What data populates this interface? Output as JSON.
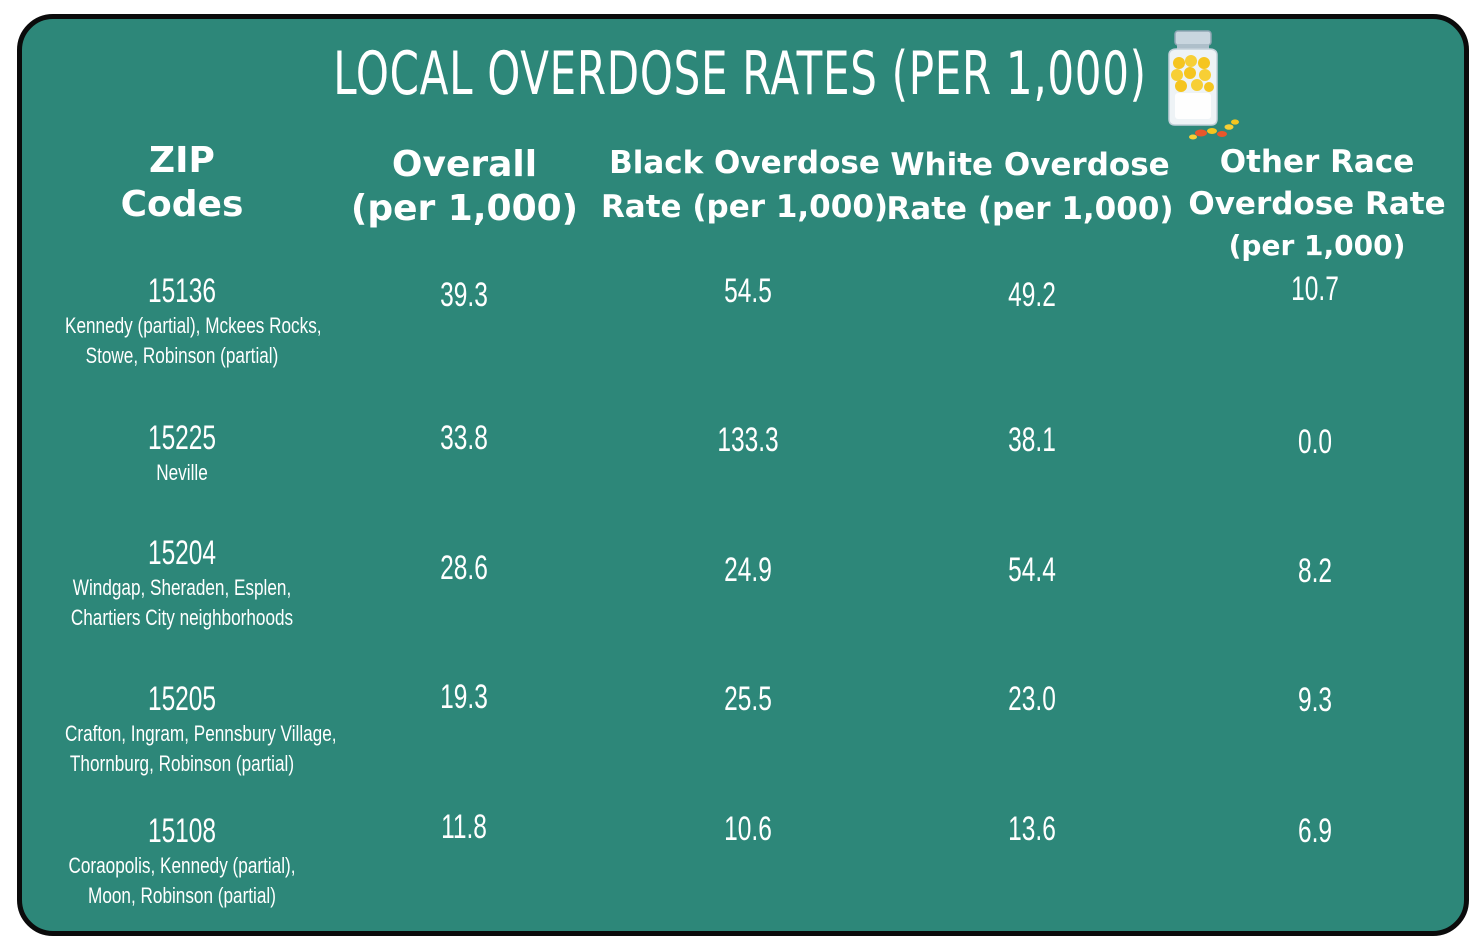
{
  "chart_data": {
    "type": "table",
    "title": "LOCAL OVERDOSE RATES (PER 1,000)",
    "columns": [
      {
        "key": "zip",
        "lines": [
          "ZIP",
          "Codes",
          ""
        ]
      },
      {
        "key": "overall",
        "lines": [
          "Overall",
          "(per 1,000)",
          ""
        ]
      },
      {
        "key": "black",
        "lines": [
          "Black Overdose",
          "Rate (per 1,000)",
          ""
        ]
      },
      {
        "key": "white",
        "lines": [
          "White Overdose",
          "Rate (per 1,000)",
          ""
        ]
      },
      {
        "key": "other",
        "lines": [
          "Other Race",
          "Overdose Rate",
          "(per 1,000)"
        ]
      }
    ],
    "rows": [
      {
        "zip": "15136",
        "areas": [
          "Kennedy (partial), Mckees Rocks,",
          "Stowe, Robinson (partial)"
        ],
        "overall": "39.3",
        "black": "54.5",
        "white": "49.2",
        "other": "10.7"
      },
      {
        "zip": "15225",
        "areas": [
          "Neville",
          ""
        ],
        "overall": "33.8",
        "black": "133.3",
        "white": "38.1",
        "other": "0.0"
      },
      {
        "zip": "15204",
        "areas": [
          "Windgap, Sheraden, Esplen,",
          "Chartiers City neighborhoods"
        ],
        "overall": "28.6",
        "black": "24.9",
        "white": "54.4",
        "other": "8.2"
      },
      {
        "zip": "15205",
        "areas": [
          "Crafton, Ingram, Pennsbury Village,",
          "Thornburg, Robinson (partial)"
        ],
        "overall": "19.3",
        "black": "25.5",
        "white": "23.0",
        "other": "9.3"
      },
      {
        "zip": "15108",
        "areas": [
          "Coraopolis, Kennedy (partial),",
          "Moon, Robinson (partial)"
        ],
        "overall": "11.8",
        "black": "10.6",
        "white": "13.6",
        "other": "6.9"
      }
    ]
  },
  "icon": "pill-bottle-icon",
  "colors": {
    "background": "#2d8779",
    "border": "#0b0b0b",
    "text": "#ffffff",
    "pill": "#f5c51f",
    "cap": "#c9d6df"
  }
}
